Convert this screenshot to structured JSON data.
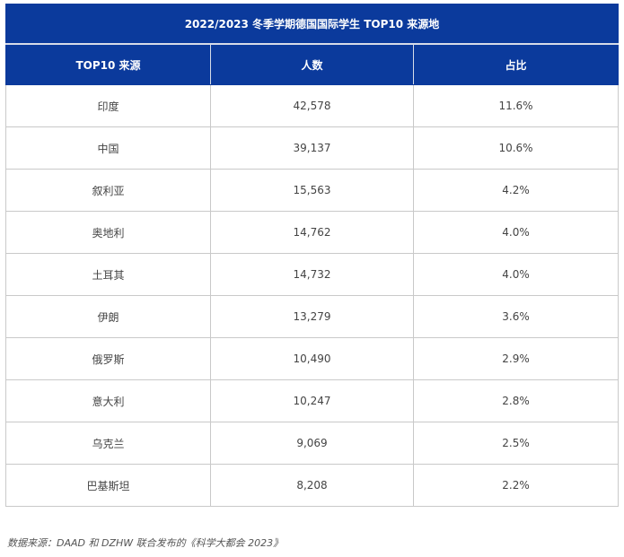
{
  "table": {
    "title": "2022/2023 冬季学期德国国际学生 TOP10 来源地",
    "headers": [
      "TOP10 来源",
      "人数",
      "占比"
    ],
    "rows": [
      {
        "country": "印度",
        "count": "42,578",
        "share": "11.6%"
      },
      {
        "country": "中国",
        "count": "39,137",
        "share": "10.6%"
      },
      {
        "country": "叙利亚",
        "count": "15,563",
        "share": "4.2%"
      },
      {
        "country": "奥地利",
        "count": "14,762",
        "share": "4.0%"
      },
      {
        "country": "土耳其",
        "count": "14,732",
        "share": "4.0%"
      },
      {
        "country": "伊朗",
        "count": "13,279",
        "share": "3.6%"
      },
      {
        "country": "俄罗斯",
        "count": "10,490",
        "share": "2.9%"
      },
      {
        "country": "意大利",
        "count": "10,247",
        "share": "2.8%"
      },
      {
        "country": "乌克兰",
        "count": "9,069",
        "share": "2.5%"
      },
      {
        "country": "巴基斯坦",
        "count": "8,208",
        "share": "2.2%"
      }
    ]
  },
  "source_note": "数据来源：DAAD 和 DZHW 联合发布的《科学大都会 2023》",
  "colors": {
    "header_bg": "#0b3a9c",
    "header_text": "#ffffff",
    "grid": "#c9c9c9"
  }
}
